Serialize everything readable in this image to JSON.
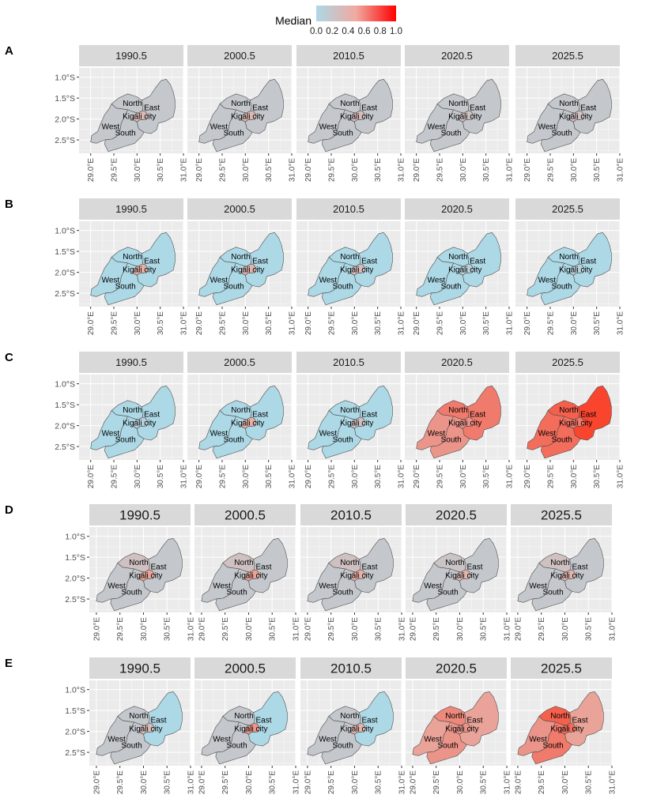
{
  "legend": {
    "title": "Median",
    "ticks": [
      "0.0",
      "0.2",
      "0.4",
      "0.6",
      "0.8",
      "1.0"
    ],
    "color_low": "#add8e6",
    "color_high": "#ff0000"
  },
  "colors": {
    "panel_bg": "#ebebeb",
    "strip_bg": "#d9d9d9",
    "grid": "#ffffff",
    "border": "#4d4d4d"
  },
  "years": [
    "1990.5",
    "2000.5",
    "2010.5",
    "2020.5",
    "2025.5"
  ],
  "y_ticks": [
    "1.0°S",
    "1.5°S",
    "2.0°S",
    "2.5°S"
  ],
  "x_ticks": [
    "29.0°E",
    "29.5°E",
    "30.0°E",
    "30.5°E",
    "31.0°E"
  ],
  "region_labels": {
    "North": "North",
    "East": "East",
    "Kigali": "Kigali city",
    "West": "West",
    "South": "South"
  },
  "chart_data": {
    "type": "choropleth-facets",
    "legend_title": "Median",
    "legend_range": [
      0,
      1
    ],
    "facet_labels": [
      "1990.5",
      "2000.5",
      "2010.5",
      "2020.5",
      "2025.5"
    ],
    "regions": [
      "North",
      "East",
      "Kigali city",
      "West",
      "South"
    ],
    "x_range": [
      "29.0°E",
      "31.0°E"
    ],
    "y_range": [
      "1.0°S",
      "2.5°S"
    ],
    "panels": [
      {
        "label": "A",
        "values": {
          "North": [
            0.2,
            0.2,
            0.2,
            0.2,
            0.2
          ],
          "East": [
            0.2,
            0.2,
            0.2,
            0.2,
            0.2
          ],
          "Kigali city": [
            0.4,
            0.4,
            0.35,
            0.3,
            0.3
          ],
          "West": [
            0.2,
            0.2,
            0.2,
            0.2,
            0.2
          ],
          "South": [
            0.2,
            0.2,
            0.2,
            0.2,
            0.2
          ]
        }
      },
      {
        "label": "B",
        "values": {
          "North": [
            0.0,
            0.0,
            0.0,
            0.0,
            0.0
          ],
          "East": [
            0.0,
            0.0,
            0.0,
            0.0,
            0.0
          ],
          "Kigali city": [
            0.5,
            0.45,
            0.35,
            0.1,
            0.1
          ],
          "West": [
            0.0,
            0.0,
            0.0,
            0.0,
            0.0
          ],
          "South": [
            0.0,
            0.0,
            0.0,
            0.0,
            0.0
          ]
        }
      },
      {
        "label": "C",
        "values": {
          "North": [
            0.0,
            0.0,
            0.0,
            0.7,
            0.8
          ],
          "East": [
            0.0,
            0.0,
            0.0,
            0.7,
            0.9
          ],
          "Kigali city": [
            0.1,
            0.5,
            0.3,
            0.6,
            0.7
          ],
          "West": [
            0.0,
            0.0,
            0.0,
            0.6,
            0.75
          ],
          "South": [
            0.0,
            0.0,
            0.0,
            0.6,
            0.75
          ]
        }
      },
      {
        "label": "D",
        "values": {
          "North": [
            0.3,
            0.3,
            0.3,
            0.25,
            0.3
          ],
          "East": [
            0.2,
            0.2,
            0.2,
            0.2,
            0.2
          ],
          "Kigali city": [
            0.55,
            0.55,
            0.5,
            0.45,
            0.45
          ],
          "West": [
            0.2,
            0.2,
            0.2,
            0.2,
            0.2
          ],
          "South": [
            0.2,
            0.2,
            0.2,
            0.2,
            0.2
          ]
        }
      },
      {
        "label": "E",
        "values": {
          "North": [
            0.2,
            0.2,
            0.2,
            0.65,
            0.8
          ],
          "East": [
            0.0,
            0.0,
            0.0,
            0.55,
            0.55
          ],
          "Kigali city": [
            0.35,
            0.6,
            0.45,
            0.6,
            0.75
          ],
          "West": [
            0.2,
            0.2,
            0.2,
            0.55,
            0.6
          ],
          "South": [
            0.2,
            0.2,
            0.2,
            0.6,
            0.7
          ]
        }
      }
    ]
  }
}
